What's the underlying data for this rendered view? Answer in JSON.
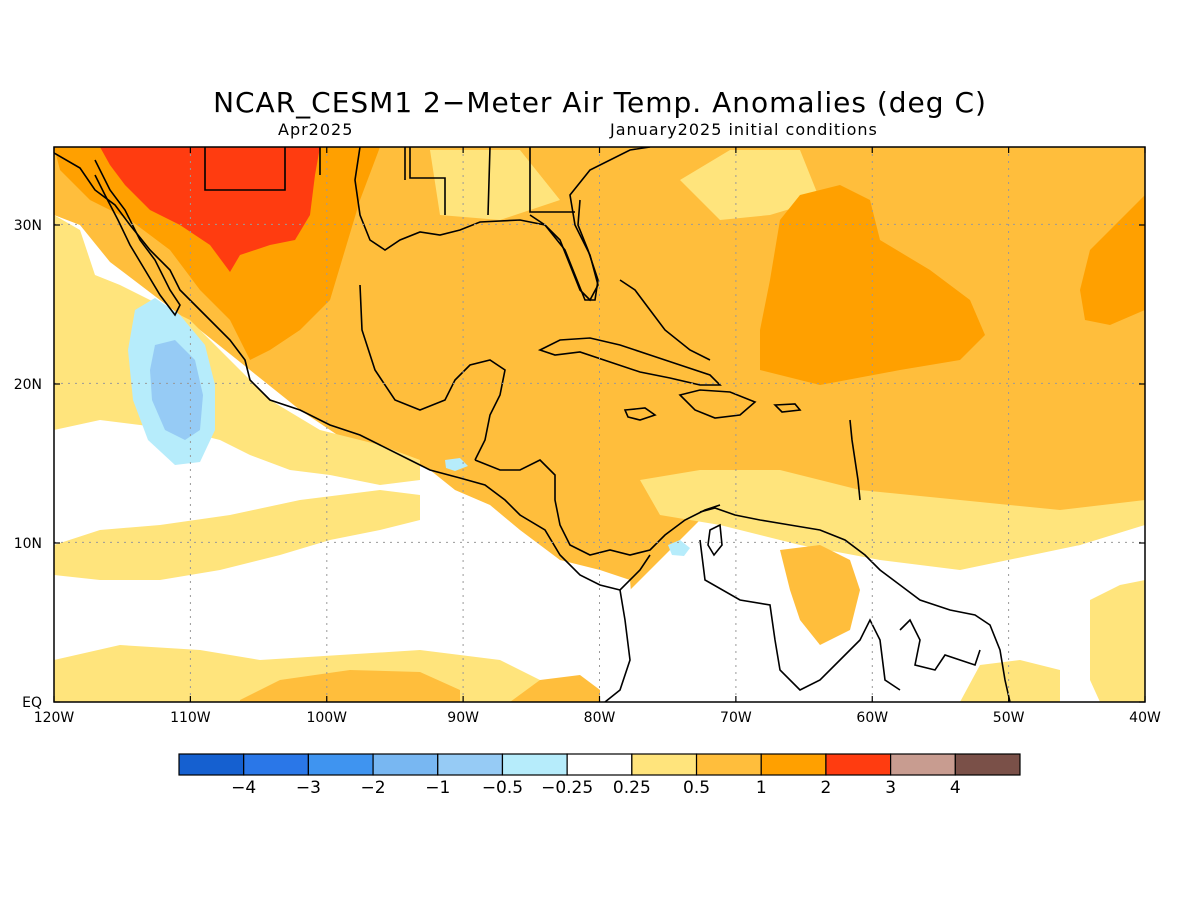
{
  "title": "NCAR_CESM1 2−Meter Air Temp. Anomalies (deg C)",
  "subtitle_left": "Apr2025",
  "subtitle_right": "January2025 initial conditions",
  "x_ticks": [
    "120W",
    "110W",
    "100W",
    "90W",
    "80W",
    "70W",
    "60W",
    "50W",
    "40W"
  ],
  "y_ticks": [
    "EQ",
    "10N",
    "20N",
    "30N"
  ],
  "colorbar": {
    "colors": [
      "#1560d0",
      "#2a77e8",
      "#3f94f0",
      "#78b7f2",
      "#96cbf5",
      "#b6ecfb",
      "#ffffff",
      "#ffe47c",
      "#ffbe3c",
      "#ffa000",
      "#ff3c10",
      "#c89c90",
      "#7a5048"
    ],
    "labels": [
      "−4",
      "−3",
      "−2",
      "−1",
      "−0.5",
      "−0.25",
      "0.25",
      "0.5",
      "1",
      "2",
      "3",
      "4"
    ]
  }
}
